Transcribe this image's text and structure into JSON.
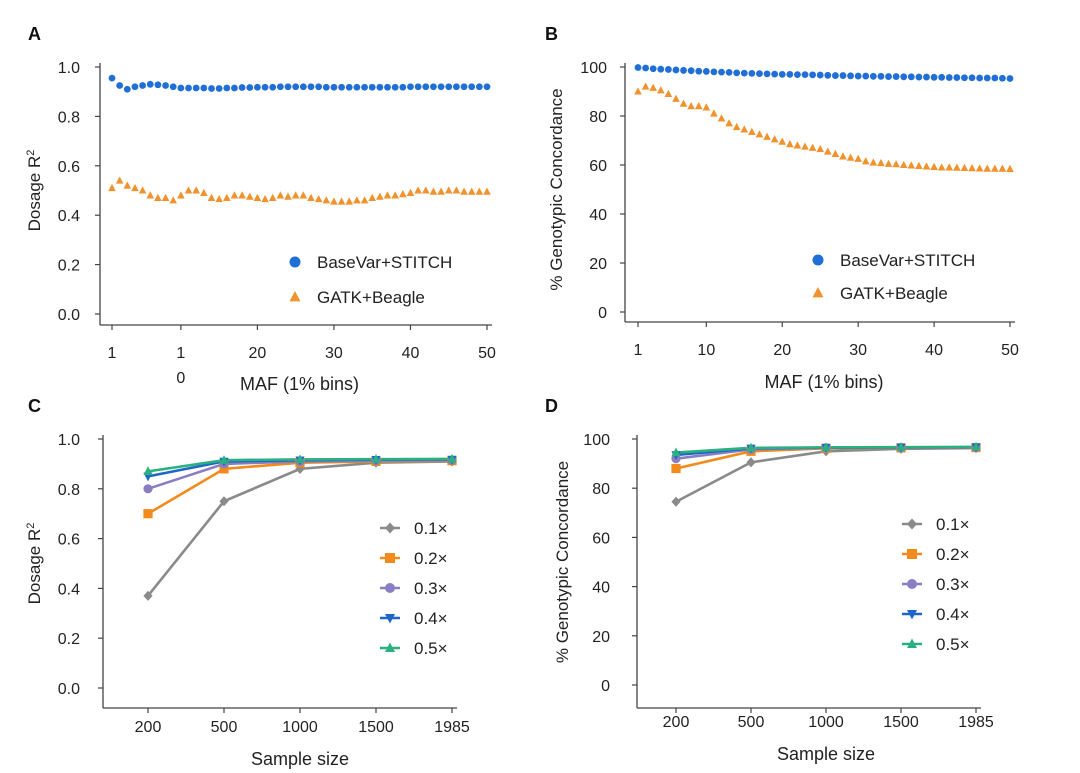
{
  "chart_data": [
    {
      "panel": "A",
      "type": "scatter",
      "xlabel": "MAF (1% bins)",
      "ylabel": "Dosage R2",
      "xlim": [
        1,
        50
      ],
      "ylim": [
        0,
        1
      ],
      "xticks": [
        "1",
        "1\n0",
        "20",
        "30",
        "40",
        "50"
      ],
      "yticks": [
        "0.0",
        "0.2",
        "0.4",
        "0.6",
        "0.8",
        "1.0"
      ],
      "legend_position": "bottom-right",
      "series": [
        {
          "name": "BaseVar+STITCH",
          "marker": "circle",
          "color": "#1f6fd6",
          "x": [
            1,
            2,
            3,
            4,
            5,
            6,
            7,
            8,
            9,
            10,
            11,
            12,
            13,
            14,
            15,
            16,
            17,
            18,
            19,
            20,
            21,
            22,
            23,
            24,
            25,
            26,
            27,
            28,
            29,
            30,
            31,
            32,
            33,
            34,
            35,
            36,
            37,
            38,
            39,
            40,
            41,
            42,
            43,
            44,
            45,
            46,
            47,
            48,
            49,
            50
          ],
          "y": [
            0.955,
            0.925,
            0.91,
            0.92,
            0.925,
            0.93,
            0.928,
            0.925,
            0.92,
            0.915,
            0.915,
            0.915,
            0.915,
            0.913,
            0.913,
            0.915,
            0.915,
            0.917,
            0.917,
            0.918,
            0.918,
            0.918,
            0.92,
            0.92,
            0.92,
            0.92,
            0.92,
            0.92,
            0.918,
            0.918,
            0.918,
            0.918,
            0.918,
            0.918,
            0.918,
            0.918,
            0.918,
            0.918,
            0.918,
            0.92,
            0.92,
            0.92,
            0.92,
            0.92,
            0.92,
            0.92,
            0.92,
            0.92,
            0.92,
            0.92
          ]
        },
        {
          "name": "GATK+Beagle",
          "marker": "triangle",
          "color": "#f0922e",
          "x": [
            1,
            2,
            3,
            4,
            5,
            6,
            7,
            8,
            9,
            10,
            11,
            12,
            13,
            14,
            15,
            16,
            17,
            18,
            19,
            20,
            21,
            22,
            23,
            24,
            25,
            26,
            27,
            28,
            29,
            30,
            31,
            32,
            33,
            34,
            35,
            36,
            37,
            38,
            39,
            40,
            41,
            42,
            43,
            44,
            45,
            46,
            47,
            48,
            49,
            50
          ],
          "y": [
            0.51,
            0.54,
            0.52,
            0.51,
            0.5,
            0.48,
            0.47,
            0.47,
            0.46,
            0.48,
            0.5,
            0.5,
            0.49,
            0.47,
            0.465,
            0.47,
            0.48,
            0.48,
            0.475,
            0.47,
            0.465,
            0.47,
            0.48,
            0.475,
            0.48,
            0.48,
            0.47,
            0.465,
            0.46,
            0.455,
            0.455,
            0.455,
            0.46,
            0.46,
            0.47,
            0.475,
            0.48,
            0.48,
            0.485,
            0.49,
            0.5,
            0.5,
            0.495,
            0.495,
            0.5,
            0.5,
            0.495,
            0.495,
            0.495,
            0.495
          ]
        }
      ]
    },
    {
      "panel": "B",
      "type": "scatter",
      "xlabel": "MAF (1% bins)",
      "ylabel": "% Genotypic Concordance",
      "xlim": [
        1,
        50
      ],
      "ylim": [
        0,
        100
      ],
      "xticks": [
        "1",
        "10",
        "20",
        "30",
        "40",
        "50"
      ],
      "yticks": [
        "0",
        "20",
        "40",
        "60",
        "80",
        "100"
      ],
      "legend_position": "bottom-right",
      "series": [
        {
          "name": "BaseVar+STITCH",
          "marker": "circle",
          "color": "#1f6fd6",
          "x": [
            1,
            2,
            3,
            4,
            5,
            6,
            7,
            8,
            9,
            10,
            11,
            12,
            13,
            14,
            15,
            16,
            17,
            18,
            19,
            20,
            21,
            22,
            23,
            24,
            25,
            26,
            27,
            28,
            29,
            30,
            31,
            32,
            33,
            34,
            35,
            36,
            37,
            38,
            39,
            40,
            41,
            42,
            43,
            44,
            45,
            46,
            47,
            48,
            49,
            50
          ],
          "y": [
            99.8,
            99.6,
            99.3,
            99.1,
            99,
            98.8,
            98.6,
            98.5,
            98.3,
            98.2,
            98,
            97.9,
            97.8,
            97.6,
            97.5,
            97.4,
            97.3,
            97.2,
            97.1,
            97,
            97,
            96.9,
            96.9,
            96.8,
            96.7,
            96.6,
            96.5,
            96.5,
            96.4,
            96.3,
            96.3,
            96.2,
            96.2,
            96.1,
            96.1,
            96,
            96,
            95.9,
            95.9,
            95.8,
            95.8,
            95.7,
            95.7,
            95.6,
            95.6,
            95.5,
            95.5,
            95.5,
            95.4,
            95.3
          ]
        },
        {
          "name": "GATK+Beagle",
          "marker": "triangle",
          "color": "#f0922e",
          "x": [
            1,
            2,
            3,
            4,
            5,
            6,
            7,
            8,
            9,
            10,
            11,
            12,
            13,
            14,
            15,
            16,
            17,
            18,
            19,
            20,
            21,
            22,
            23,
            24,
            25,
            26,
            27,
            28,
            29,
            30,
            31,
            32,
            33,
            34,
            35,
            36,
            37,
            38,
            39,
            40,
            41,
            42,
            43,
            44,
            45,
            46,
            47,
            48,
            49,
            50
          ],
          "y": [
            90,
            92,
            91.5,
            90.5,
            89,
            87,
            85,
            84,
            84,
            83.5,
            81,
            79,
            77,
            75.5,
            74.5,
            73.5,
            72.5,
            71.5,
            70.5,
            69.5,
            68.5,
            68,
            67.5,
            67,
            66.5,
            65.5,
            64.5,
            63.5,
            63,
            62.5,
            61.5,
            61,
            60.8,
            60.5,
            60.3,
            60,
            59.8,
            59.6,
            59.4,
            59.2,
            59,
            59,
            58.9,
            58.8,
            58.7,
            58.6,
            58.5,
            58.5,
            58.5,
            58.4
          ]
        }
      ]
    },
    {
      "panel": "C",
      "type": "line",
      "xlabel": "Sample size",
      "ylabel": "Dosage R2",
      "categories": [
        "200",
        "500",
        "1000",
        "1500",
        "1985"
      ],
      "ylim": [
        0,
        1
      ],
      "yticks": [
        "0.0",
        "0.2",
        "0.4",
        "0.6",
        "0.8",
        "1.0"
      ],
      "legend_position": "right",
      "series": [
        {
          "name": "0.1×",
          "marker": "diamond",
          "color": "#8a8a8a",
          "values": [
            0.37,
            0.75,
            0.88,
            0.905,
            0.91
          ]
        },
        {
          "name": "0.2×",
          "marker": "square",
          "color": "#f28a1c",
          "values": [
            0.7,
            0.88,
            0.905,
            0.91,
            0.913
          ]
        },
        {
          "name": "0.3×",
          "marker": "circle",
          "color": "#8a7ec3",
          "values": [
            0.8,
            0.9,
            0.91,
            0.913,
            0.915
          ]
        },
        {
          "name": "0.4×",
          "marker": "triangle-down",
          "color": "#1e66c7",
          "values": [
            0.85,
            0.91,
            0.915,
            0.917,
            0.918
          ]
        },
        {
          "name": "0.5×",
          "marker": "triangle",
          "color": "#2bb07f",
          "values": [
            0.87,
            0.915,
            0.918,
            0.919,
            0.92
          ]
        }
      ]
    },
    {
      "panel": "D",
      "type": "line",
      "xlabel": "Sample size",
      "ylabel": "% Genotypic Concordance",
      "categories": [
        "200",
        "500",
        "1000",
        "1500",
        "1985"
      ],
      "ylim": [
        0,
        100
      ],
      "yticks": [
        "0",
        "20",
        "40",
        "60",
        "80",
        "100"
      ],
      "legend_position": "right",
      "series": [
        {
          "name": "0.1×",
          "marker": "diamond",
          "color": "#8a8a8a",
          "values": [
            74.5,
            90.5,
            95,
            96,
            96.3
          ]
        },
        {
          "name": "0.2×",
          "marker": "square",
          "color": "#f28a1c",
          "values": [
            88,
            95,
            96.2,
            96.4,
            96.5
          ]
        },
        {
          "name": "0.3×",
          "marker": "circle",
          "color": "#8a7ec3",
          "values": [
            92,
            95.8,
            96.4,
            96.5,
            96.6
          ]
        },
        {
          "name": "0.4×",
          "marker": "triangle-down",
          "color": "#1e66c7",
          "values": [
            93.5,
            96.2,
            96.5,
            96.6,
            96.7
          ]
        },
        {
          "name": "0.5×",
          "marker": "triangle",
          "color": "#2bb07f",
          "values": [
            94.5,
            96.4,
            96.6,
            96.7,
            96.8
          ]
        }
      ]
    }
  ]
}
